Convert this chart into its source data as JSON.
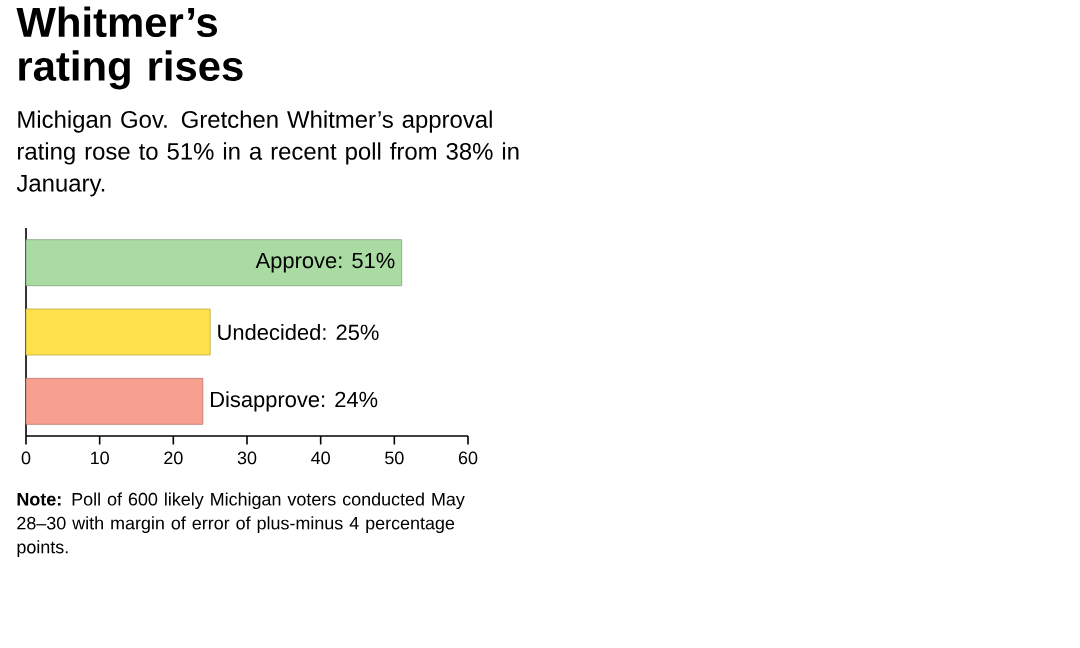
{
  "chart_data": {
    "type": "bar",
    "orientation": "horizontal",
    "title": "Whitmer’s rating rises",
    "subtitle": "Michigan Gov. Gretchen Whitmer’s approval rating rose to 51% in a recent poll from 38% in January.",
    "categories": [
      null,
      null,
      null
    ],
    "values": [
      51,
      25,
      24
    ],
    "value_labels": [
      "Approve: 51%",
      "Undecided: 25%",
      "Disapprove: 24%"
    ],
    "colors": [
      "#a9dba3",
      "#ffe14d",
      "#f7a08f"
    ],
    "xlim": [
      0,
      60
    ],
    "xticks": [
      0,
      10,
      20,
      30,
      40,
      50,
      60
    ],
    "tick_labels": "x",
    "annotations": [
      "**Note:** Poll of 600 likely Michigan voters conducted May 28–30 with margin of error of plus-minus 4 percentage points."
    ]
  }
}
